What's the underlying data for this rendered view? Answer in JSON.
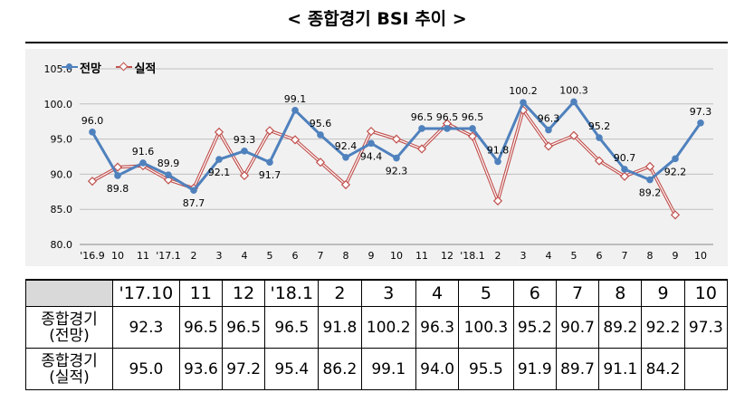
{
  "title": "< 종합경기 BSI 추이 >",
  "colors": {
    "forecast": "#4f81bd",
    "actual": "#c0504d",
    "chart_bg": "#f1f1f1",
    "grid": "#bfbfbf"
  },
  "chart_data": {
    "type": "line",
    "title": "",
    "xlabel": "",
    "ylabel": "",
    "ylim": [
      80.0,
      105.0
    ],
    "yticks": [
      "105.0",
      "100.0",
      "95.0",
      "90.0",
      "85.0",
      "80.0"
    ],
    "grid": true,
    "legend_position": "top-left",
    "categories": [
      "'16.9",
      "10",
      "11",
      "'17.1",
      "2",
      "3",
      "4",
      "5",
      "6",
      "7",
      "8",
      "9",
      "10",
      "11",
      "12",
      "'18.1",
      "2",
      "3",
      "4",
      "5",
      "6",
      "7",
      "8",
      "9",
      "10"
    ],
    "series": [
      {
        "name": "전망",
        "values": [
          96.0,
          89.8,
          91.6,
          89.9,
          87.7,
          92.1,
          93.3,
          91.7,
          99.1,
          95.6,
          92.4,
          94.4,
          92.3,
          96.5,
          96.5,
          96.5,
          91.8,
          100.2,
          96.3,
          100.3,
          95.2,
          90.7,
          89.2,
          92.2,
          97.3
        ],
        "labels": [
          "96.0",
          "89.8",
          "91.6",
          "89.9",
          "87.7",
          "92.1",
          "93.3",
          "91.7",
          "99.1",
          "95.6",
          "92.4",
          "94.4",
          "92.3",
          "96.5",
          "96.5",
          "96.5",
          "91.8",
          "100.2",
          "96.3",
          "100.3",
          "95.2",
          "90.7",
          "89.2",
          "92.2",
          "97.3"
        ]
      },
      {
        "name": "실적",
        "values": [
          89.0,
          91.0,
          91.2,
          89.2,
          88.0,
          96.0,
          89.8,
          96.2,
          94.9,
          91.7,
          88.5,
          96.1,
          95.0,
          93.6,
          97.2,
          95.4,
          86.2,
          99.1,
          94.0,
          95.5,
          91.9,
          89.7,
          91.1,
          84.2,
          null
        ]
      }
    ]
  },
  "table": {
    "headers": [
      "'17.10",
      "11",
      "12",
      "'18.1",
      "2",
      "3",
      "4",
      "5",
      "6",
      "7",
      "8",
      "9",
      "10"
    ],
    "rows": [
      {
        "label_line1": "종합경기",
        "label_line2": "(전망)",
        "values": [
          "92.3",
          "96.5",
          "96.5",
          "96.5",
          "91.8",
          "100.2",
          "96.3",
          "100.3",
          "95.2",
          "90.7",
          "89.2",
          "92.2",
          "97.3"
        ]
      },
      {
        "label_line1": "종합경기",
        "label_line2": "(실적)",
        "values": [
          "95.0",
          "93.6",
          "97.2",
          "95.4",
          "86.2",
          "99.1",
          "94.0",
          "95.5",
          "91.9",
          "89.7",
          "91.1",
          "84.2",
          ""
        ]
      }
    ]
  }
}
